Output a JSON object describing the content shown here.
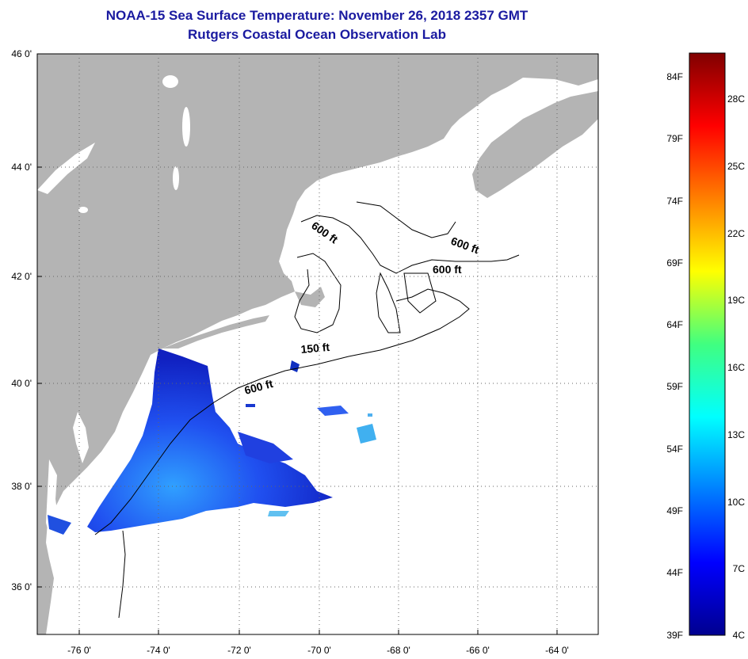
{
  "header": {
    "title": "NOAA-15 Sea Surface Temperature:  November 26, 2018 2357 GMT",
    "subtitle": "Rutgers Coastal Ocean Observation Lab"
  },
  "map": {
    "lat_ticks": [
      "46 0'",
      "44 0'",
      "42 0'",
      "40 0'",
      "38 0'",
      "36 0'"
    ],
    "lon_ticks": [
      "-76 0'",
      "-74 0'",
      "-72 0'",
      "-70 0'",
      "-68 0'",
      "-66 0'",
      "-64 0'"
    ],
    "contour_labels": [
      "600 ft",
      "600 ft",
      "600 ft",
      "150 ft",
      "600 ft"
    ],
    "colors": {
      "land": "#b4b4b4",
      "ocean": "#ffffff",
      "grid": "#555555"
    }
  },
  "colorbar": {
    "fahrenheit_labels": [
      "84F",
      "79F",
      "74F",
      "69F",
      "64F",
      "59F",
      "54F",
      "49F",
      "44F",
      "39F"
    ],
    "celsius_labels": [
      "28C",
      "25C",
      "22C",
      "19C",
      "16C",
      "13C",
      "10C",
      "7C",
      "4C"
    ]
  }
}
